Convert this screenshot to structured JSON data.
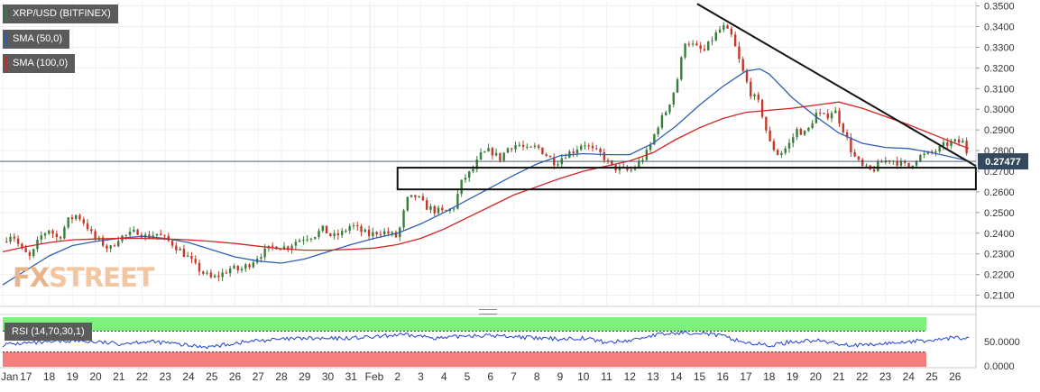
{
  "legend": {
    "title": "XRP/USD (BITFINEX)",
    "sma50": "SMA (50,0)",
    "sma100": "SMA (100,0)",
    "rsi": "RSI (14,70,30,1)"
  },
  "watermark": {
    "fx": "FX",
    "street": "STREET"
  },
  "colors": {
    "up": "#3a7d3a",
    "down": "#c0392b",
    "sma50": "#2f5fb3",
    "sma100": "#d62222",
    "rsi_line": "#1f3fd0",
    "rsi_overbought": "#7df07d",
    "rsi_oversold": "#f47e7e",
    "price_tag": "#34495e"
  },
  "chart_data": {
    "type": "candlestick",
    "symbol": "XRP/USD (BITFINEX)",
    "y_ticks": [
      "0.3500",
      "0.3400",
      "0.3300",
      "0.3200",
      "0.3100",
      "0.3000",
      "0.2900",
      "0.2800",
      "0.2700",
      "0.2600",
      "0.2500",
      "0.2400",
      "0.2300",
      "0.2200",
      "0.2100"
    ],
    "ylim": [
      0.205,
      0.352
    ],
    "last_price": "0.27477",
    "last_price_value": 0.27477,
    "x_ticks": [
      "Jan",
      "17",
      "18",
      "19",
      "20",
      "21",
      "22",
      "23",
      "24",
      "25",
      "26",
      "27",
      "28",
      "29",
      "30",
      "31",
      "Feb",
      "2",
      "3",
      "4",
      "5",
      "6",
      "7",
      "8",
      "9",
      "10",
      "11",
      "12",
      "13",
      "14",
      "15",
      "16",
      "17",
      "18",
      "19",
      "20",
      "21",
      "22",
      "23",
      "24",
      "25",
      "26"
    ],
    "close_path": [
      [
        0,
        0.236
      ],
      [
        0.4,
        0.24
      ],
      [
        0.8,
        0.232
      ],
      [
        1.2,
        0.228
      ],
      [
        1.6,
        0.238
      ],
      [
        2.0,
        0.242
      ],
      [
        2.4,
        0.237
      ],
      [
        2.8,
        0.246
      ],
      [
        3.2,
        0.249
      ],
      [
        3.6,
        0.244
      ],
      [
        3.9,
        0.238
      ],
      [
        4.2,
        0.236
      ],
      [
        4.6,
        0.232
      ],
      [
        5.0,
        0.238
      ],
      [
        5.4,
        0.239
      ],
      [
        5.8,
        0.241
      ],
      [
        6.2,
        0.238
      ],
      [
        6.6,
        0.24
      ],
      [
        7.0,
        0.237
      ],
      [
        7.3,
        0.235
      ],
      [
        7.6,
        0.232
      ],
      [
        8.0,
        0.228
      ],
      [
        8.3,
        0.224
      ],
      [
        8.6,
        0.221
      ],
      [
        9.0,
        0.218
      ],
      [
        9.4,
        0.22
      ],
      [
        9.8,
        0.223
      ],
      [
        10.2,
        0.222
      ],
      [
        10.6,
        0.225
      ],
      [
        11.0,
        0.229
      ],
      [
        11.4,
        0.232
      ],
      [
        11.8,
        0.234
      ],
      [
        12.2,
        0.233
      ],
      [
        12.6,
        0.236
      ],
      [
        13.0,
        0.238
      ],
      [
        13.4,
        0.239
      ],
      [
        13.8,
        0.242
      ],
      [
        14.2,
        0.238
      ],
      [
        14.6,
        0.24
      ],
      [
        15.0,
        0.244
      ],
      [
        15.4,
        0.241
      ],
      [
        15.8,
        0.239
      ],
      [
        16.2,
        0.241
      ],
      [
        16.6,
        0.24
      ],
      [
        17.0,
        0.238
      ],
      [
        17.4,
        0.256
      ],
      [
        17.8,
        0.258
      ],
      [
        18.2,
        0.253
      ],
      [
        18.6,
        0.251
      ],
      [
        19.0,
        0.25
      ],
      [
        19.4,
        0.252
      ],
      [
        19.8,
        0.266
      ],
      [
        20.2,
        0.27
      ],
      [
        20.6,
        0.278
      ],
      [
        21.0,
        0.28
      ],
      [
        21.4,
        0.276
      ],
      [
        21.8,
        0.282
      ],
      [
        22.2,
        0.283
      ],
      [
        22.6,
        0.28
      ],
      [
        23.0,
        0.282
      ],
      [
        23.4,
        0.278
      ],
      [
        23.8,
        0.274
      ],
      [
        24.2,
        0.278
      ],
      [
        24.6,
        0.28
      ],
      [
        25.0,
        0.284
      ],
      [
        25.4,
        0.28
      ],
      [
        25.8,
        0.278
      ],
      [
        26.2,
        0.272
      ],
      [
        26.6,
        0.271
      ],
      [
        27.0,
        0.27
      ],
      [
        27.4,
        0.274
      ],
      [
        27.8,
        0.28
      ],
      [
        28.2,
        0.292
      ],
      [
        28.6,
        0.3
      ],
      [
        29.0,
        0.312
      ],
      [
        29.4,
        0.334
      ],
      [
        29.8,
        0.33
      ],
      [
        30.2,
        0.328
      ],
      [
        30.6,
        0.335
      ],
      [
        31.0,
        0.34
      ],
      [
        31.4,
        0.335
      ],
      [
        31.8,
        0.32
      ],
      [
        32.2,
        0.308
      ],
      [
        32.6,
        0.302
      ],
      [
        33.0,
        0.284
      ],
      [
        33.4,
        0.278
      ],
      [
        33.8,
        0.282
      ],
      [
        34.2,
        0.29
      ],
      [
        34.6,
        0.288
      ],
      [
        35.0,
        0.298
      ],
      [
        35.4,
        0.296
      ],
      [
        35.8,
        0.3
      ],
      [
        36.2,
        0.29
      ],
      [
        36.6,
        0.278
      ],
      [
        37.0,
        0.272
      ],
      [
        37.4,
        0.27
      ],
      [
        37.8,
        0.274
      ],
      [
        38.2,
        0.276
      ],
      [
        38.6,
        0.274
      ],
      [
        39.0,
        0.272
      ],
      [
        39.4,
        0.277
      ],
      [
        39.8,
        0.278
      ],
      [
        40.2,
        0.28
      ],
      [
        40.6,
        0.283
      ],
      [
        41.0,
        0.284
      ],
      [
        41.4,
        0.284
      ],
      [
        41.6,
        0.275
      ]
    ],
    "sma50_path": [
      [
        0,
        0.215
      ],
      [
        1,
        0.222
      ],
      [
        2,
        0.229
      ],
      [
        3,
        0.234
      ],
      [
        4,
        0.236
      ],
      [
        5,
        0.2375
      ],
      [
        6,
        0.2385
      ],
      [
        7,
        0.2375
      ],
      [
        8,
        0.2355
      ],
      [
        9,
        0.232
      ],
      [
        10,
        0.2285
      ],
      [
        11,
        0.2265
      ],
      [
        12,
        0.2255
      ],
      [
        13,
        0.2275
      ],
      [
        14,
        0.231
      ],
      [
        15,
        0.2345
      ],
      [
        16,
        0.2375
      ],
      [
        17,
        0.24
      ],
      [
        18,
        0.2445
      ],
      [
        19,
        0.25
      ],
      [
        20,
        0.256
      ],
      [
        21,
        0.262
      ],
      [
        22,
        0.268
      ],
      [
        23,
        0.2735
      ],
      [
        24,
        0.2775
      ],
      [
        25,
        0.2785
      ],
      [
        26,
        0.278
      ],
      [
        27,
        0.278
      ],
      [
        28,
        0.2835
      ],
      [
        29,
        0.292
      ],
      [
        30,
        0.302
      ],
      [
        31,
        0.311
      ],
      [
        32,
        0.3185
      ],
      [
        32.6,
        0.3195
      ],
      [
        33,
        0.317
      ],
      [
        34,
        0.3055
      ],
      [
        35,
        0.2965
      ],
      [
        36,
        0.2885
      ],
      [
        37,
        0.2835
      ],
      [
        38,
        0.2815
      ],
      [
        39,
        0.281
      ],
      [
        40,
        0.279
      ],
      [
        41,
        0.2765
      ],
      [
        41.6,
        0.275
      ]
    ],
    "sma100_path": [
      [
        0,
        0.231
      ],
      [
        1,
        0.2335
      ],
      [
        2,
        0.2355
      ],
      [
        3,
        0.2368
      ],
      [
        4,
        0.2372
      ],
      [
        5,
        0.2375
      ],
      [
        6,
        0.2375
      ],
      [
        7,
        0.2372
      ],
      [
        8,
        0.2368
      ],
      [
        9,
        0.236
      ],
      [
        10,
        0.235
      ],
      [
        11,
        0.2337
      ],
      [
        12,
        0.2325
      ],
      [
        13,
        0.2318
      ],
      [
        14,
        0.2318
      ],
      [
        15,
        0.2322
      ],
      [
        16,
        0.2328
      ],
      [
        17,
        0.2345
      ],
      [
        18,
        0.2375
      ],
      [
        19,
        0.242
      ],
      [
        20,
        0.2475
      ],
      [
        21,
        0.253
      ],
      [
        22,
        0.2585
      ],
      [
        23,
        0.2625
      ],
      [
        24,
        0.2665
      ],
      [
        25,
        0.27
      ],
      [
        26,
        0.2725
      ],
      [
        27,
        0.275
      ],
      [
        28,
        0.279
      ],
      [
        29,
        0.2855
      ],
      [
        30,
        0.291
      ],
      [
        31,
        0.2955
      ],
      [
        32,
        0.2985
      ],
      [
        33,
        0.2995
      ],
      [
        34,
        0.3005
      ],
      [
        35,
        0.302
      ],
      [
        36,
        0.3035
      ],
      [
        37,
        0.3005
      ],
      [
        38,
        0.2965
      ],
      [
        39,
        0.2925
      ],
      [
        40,
        0.288
      ],
      [
        41,
        0.2835
      ],
      [
        41.6,
        0.281
      ]
    ],
    "trendline": [
      [
        29.9,
        0.351
      ],
      [
        41.9,
        0.2725
      ]
    ],
    "support_box": {
      "x_start": 17.0,
      "x_end": 41.9,
      "y_low": 0.2612,
      "y_high": 0.2717
    },
    "rsi": {
      "y_ticks": [
        "50.0000",
        "0.0000"
      ],
      "ylim": [
        0,
        100
      ],
      "overbought": 70,
      "oversold": 30,
      "path": [
        [
          0,
          44
        ],
        [
          1,
          47
        ],
        [
          2,
          48
        ],
        [
          3,
          52
        ],
        [
          4,
          49
        ],
        [
          5,
          46
        ],
        [
          6,
          50
        ],
        [
          7,
          48
        ],
        [
          8,
          42
        ],
        [
          9,
          40
        ],
        [
          10,
          47
        ],
        [
          11,
          52
        ],
        [
          12,
          54
        ],
        [
          13,
          56
        ],
        [
          14,
          55
        ],
        [
          15,
          57
        ],
        [
          16,
          58
        ],
        [
          17,
          63
        ],
        [
          18,
          60
        ],
        [
          19,
          56
        ],
        [
          20,
          62
        ],
        [
          21,
          61
        ],
        [
          22,
          60
        ],
        [
          23,
          56
        ],
        [
          24,
          55
        ],
        [
          25,
          57
        ],
        [
          26,
          48
        ],
        [
          27,
          52
        ],
        [
          28,
          62
        ],
        [
          29,
          66
        ],
        [
          30,
          68
        ],
        [
          31,
          60
        ],
        [
          32,
          48
        ],
        [
          33,
          42
        ],
        [
          34,
          50
        ],
        [
          35,
          52
        ],
        [
          36,
          46
        ],
        [
          37,
          42
        ],
        [
          38,
          46
        ],
        [
          39,
          50
        ],
        [
          40,
          52
        ],
        [
          41,
          58
        ],
        [
          41.6,
          55
        ]
      ]
    }
  }
}
